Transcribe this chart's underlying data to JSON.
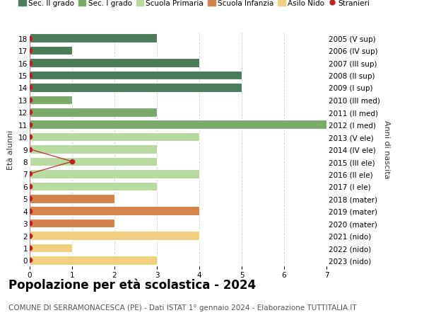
{
  "ages": [
    18,
    17,
    16,
    15,
    14,
    13,
    12,
    11,
    10,
    9,
    8,
    7,
    6,
    5,
    4,
    3,
    2,
    1,
    0
  ],
  "right_labels": [
    "2005 (V sup)",
    "2006 (IV sup)",
    "2007 (III sup)",
    "2008 (II sup)",
    "2009 (I sup)",
    "2010 (III med)",
    "2011 (II med)",
    "2012 (I med)",
    "2013 (V ele)",
    "2014 (IV ele)",
    "2015 (III ele)",
    "2016 (II ele)",
    "2017 (I ele)",
    "2018 (mater)",
    "2019 (mater)",
    "2020 (mater)",
    "2021 (nido)",
    "2022 (nido)",
    "2023 (nido)"
  ],
  "bar_values": [
    3,
    1,
    4,
    5,
    5,
    1,
    3,
    7,
    4,
    3,
    3,
    4,
    3,
    2,
    4,
    2,
    4,
    1,
    3
  ],
  "bar_colors": [
    "#4a7c59",
    "#4a7c59",
    "#4a7c59",
    "#4a7c59",
    "#4a7c59",
    "#7aaa6a",
    "#7aaa6a",
    "#7aaa6a",
    "#b8d9a0",
    "#b8d9a0",
    "#b8d9a0",
    "#b8d9a0",
    "#b8d9a0",
    "#d4834a",
    "#d4834a",
    "#d4834a",
    "#f0d080",
    "#f0d080",
    "#f0d080"
  ],
  "stranieri_values": [
    0,
    0,
    0,
    0,
    0,
    0,
    0,
    0,
    0,
    0,
    1,
    0,
    0,
    0,
    0,
    0,
    0,
    0,
    0
  ],
  "stranieri_color": "#bb2222",
  "title": "Popolazione per età scolastica - 2024",
  "subtitle": "COMUNE DI SERRAMONACESCA (PE) - Dati ISTAT 1° gennaio 2024 - Elaborazione TUTTITALIA.IT",
  "ylabel": "Età alunni",
  "right_ylabel": "Anni di nascita",
  "xlim": [
    0,
    7
  ],
  "xticks": [
    0,
    1,
    2,
    3,
    4,
    5,
    6,
    7
  ],
  "legend_labels": [
    "Sec. II grado",
    "Sec. I grado",
    "Scuola Primaria",
    "Scuola Infanzia",
    "Asilo Nido",
    "Stranieri"
  ],
  "legend_colors": [
    "#4a7c59",
    "#7aaa6a",
    "#b8d9a0",
    "#d4834a",
    "#f0d080",
    "#bb2222"
  ],
  "background_color": "#ffffff",
  "grid_color": "#cccccc",
  "bar_edge_color": "#ffffff",
  "title_fontsize": 12,
  "subtitle_fontsize": 7.5,
  "axis_fontsize": 8,
  "tick_fontsize": 7.5,
  "legend_fontsize": 7.5
}
